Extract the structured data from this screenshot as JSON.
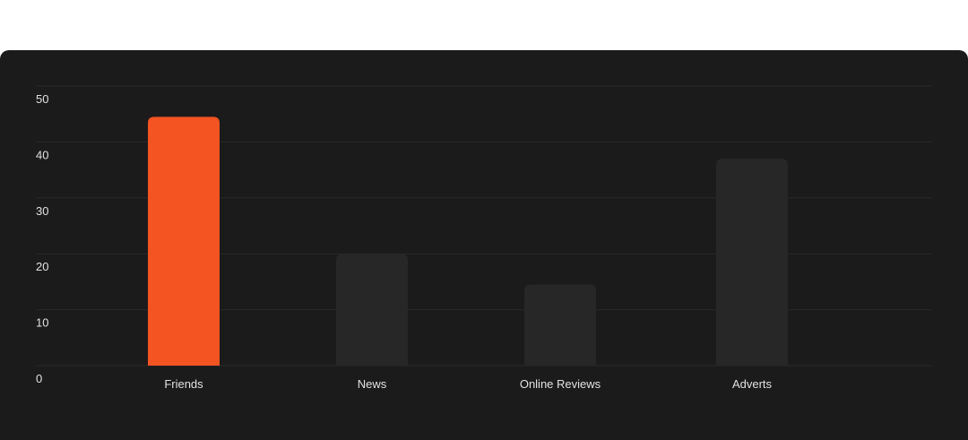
{
  "chart_data": {
    "type": "bar",
    "categories": [
      "Friends",
      "News",
      "Online Reviews",
      "Adverts"
    ],
    "values": [
      44.5,
      20,
      14.5,
      37
    ],
    "highlight_index": 0,
    "ylim": [
      0,
      50
    ],
    "yticks": [
      0,
      10,
      20,
      30,
      40,
      50
    ],
    "grid": true,
    "title": "",
    "xlabel": "",
    "ylabel": ""
  },
  "colors": {
    "background": "#1b1b1b",
    "highlight_bar": "#f45322",
    "bar": "#272727",
    "gridline": "#2a2a2a",
    "text": "#e2e2e2"
  }
}
